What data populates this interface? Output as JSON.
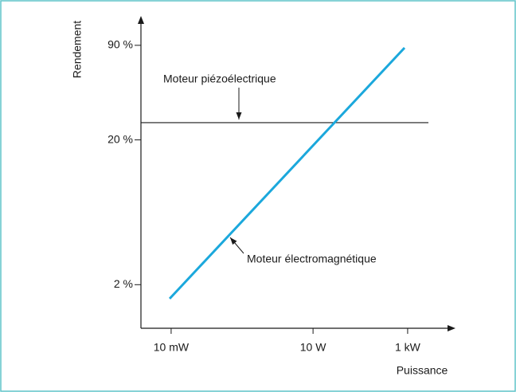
{
  "chart_data": {
    "type": "line",
    "ylabel": "Rendement",
    "xlabel": "Puissance",
    "xlog": true,
    "ylog": true,
    "xlim": [
      0.0023,
      9500
    ],
    "ylim": [
      1,
      140
    ],
    "xticks": [
      {
        "value": 0.01,
        "label": "10 mW"
      },
      {
        "value": 10,
        "label": "10 W"
      },
      {
        "value": 1000,
        "label": "1 kW"
      }
    ],
    "yticks": [
      {
        "value": 2,
        "label": "2 %"
      },
      {
        "value": 20,
        "label": "20 %"
      },
      {
        "value": 90,
        "label": "90 %"
      }
    ],
    "series": [
      {
        "name": "Moteur piézoélectrique",
        "color": "#1a1a1a",
        "x": [
          0.0023,
          2750
        ],
        "values": [
          26.3,
          26.3
        ]
      },
      {
        "name": "Moteur électromagnétique",
        "color": "#1ba8dc",
        "x": [
          0.0093,
          860
        ],
        "values": [
          1.6,
          86.5
        ]
      }
    ]
  }
}
